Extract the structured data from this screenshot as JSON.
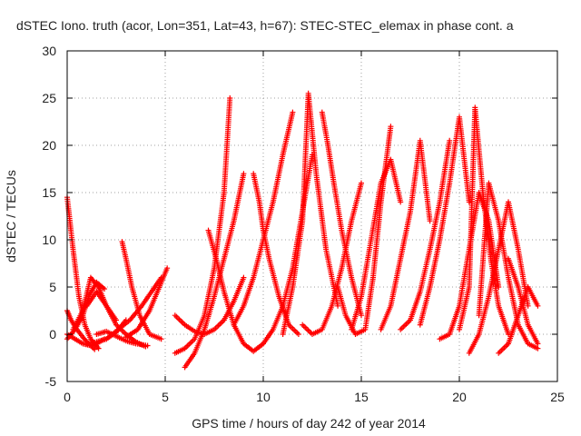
{
  "chart_data": {
    "type": "scatter",
    "title": "dSTEC Iono. truth (acor, Lon=351, Lat=43, h=67): STEC-STEC_elemax in phase cont. a",
    "xlabel": "GPS time / hours of day 242 of year 2014",
    "ylabel": "dSTEC  / TECUs",
    "xlim": [
      0,
      25
    ],
    "ylim": [
      -5,
      30
    ],
    "x_ticks": [
      0,
      5,
      10,
      15,
      20,
      25
    ],
    "x_tick_labels": [
      "0",
      "5",
      "10",
      "15",
      "20",
      "25"
    ],
    "y_ticks": [
      -5,
      0,
      5,
      10,
      15,
      20,
      25,
      30
    ],
    "y_tick_labels": [
      "-5",
      "0",
      "5",
      "10",
      "15",
      "20",
      "25",
      "30"
    ],
    "grid": true,
    "marker": "+",
    "color": "#ff0000",
    "series": [
      {
        "x": [
          0.0,
          0.3,
          0.6,
          0.9,
          1.2,
          1.6
        ],
        "y": [
          14.5,
          9.0,
          4.0,
          1.0,
          -0.5,
          -1.5
        ]
      },
      {
        "x": [
          0.0,
          0.2,
          0.5,
          0.8,
          1.0,
          1.4
        ],
        "y": [
          2.5,
          1.5,
          0.5,
          -0.3,
          -0.8,
          -1.6
        ]
      },
      {
        "x": [
          0.0,
          0.4,
          0.8,
          1.2,
          1.5,
          1.9
        ],
        "y": [
          0.0,
          -0.5,
          -1.0,
          -1.2,
          -1.0,
          -0.5
        ]
      },
      {
        "x": [
          0.0,
          0.4,
          0.8,
          1.1,
          1.5,
          1.9
        ],
        "y": [
          -0.5,
          0.5,
          2.0,
          4.0,
          5.5,
          4.8
        ]
      },
      {
        "x": [
          0.3,
          0.8,
          1.2,
          1.6,
          2.0,
          2.5
        ],
        "y": [
          0.5,
          2.5,
          6.0,
          5.0,
          3.0,
          1.5
        ]
      },
      {
        "x": [
          1.0,
          1.5,
          2.0,
          2.5,
          3.0,
          3.5,
          4.0
        ],
        "y": [
          3.0,
          4.5,
          3.0,
          1.0,
          0.0,
          -0.8,
          -1.3
        ]
      },
      {
        "x": [
          1.0,
          1.5,
          2.0,
          2.5,
          3.0
        ],
        "y": [
          -1.0,
          -0.8,
          -0.5,
          0.2,
          1.5
        ]
      },
      {
        "x": [
          1.5,
          2.0,
          2.5,
          3.0,
          3.5,
          4.1
        ],
        "y": [
          0.0,
          0.3,
          -0.2,
          -0.7,
          -1.0,
          -1.2
        ]
      },
      {
        "x": [
          2.8,
          3.0,
          3.3,
          3.7,
          4.2,
          4.8
        ],
        "y": [
          9.8,
          8.0,
          5.0,
          2.0,
          0.0,
          -0.5
        ]
      },
      {
        "x": [
          2.0,
          2.6,
          3.2,
          3.8,
          4.3,
          4.8
        ],
        "y": [
          -0.5,
          0.5,
          1.5,
          3.0,
          4.5,
          6.0
        ]
      },
      {
        "x": [
          3.0,
          3.6,
          4.2,
          4.8,
          5.1
        ],
        "y": [
          -0.3,
          0.5,
          2.5,
          5.5,
          7.0
        ]
      },
      {
        "x": [
          5.5,
          6.0,
          6.5,
          7.0,
          7.5,
          8.0,
          8.3
        ],
        "y": [
          -2.0,
          -1.5,
          -0.5,
          2.0,
          7.0,
          15.0,
          25.0
        ]
      },
      {
        "x": [
          6.0,
          6.5,
          7.0,
          7.5,
          8.0,
          8.5,
          9.0
        ],
        "y": [
          -3.5,
          -2.0,
          0.5,
          4.0,
          8.0,
          12.0,
          17.0
        ]
      },
      {
        "x": [
          5.5,
          6.0,
          6.5,
          7.0,
          7.5,
          8.0,
          8.5,
          9.0
        ],
        "y": [
          2.0,
          1.0,
          0.3,
          0.0,
          0.5,
          1.5,
          3.5,
          6.0
        ]
      },
      {
        "x": [
          7.2,
          7.6,
          8.0,
          8.5,
          9.0,
          9.5,
          10.0
        ],
        "y": [
          11.0,
          8.0,
          4.5,
          1.0,
          -1.0,
          -1.8,
          -1.0
        ]
      },
      {
        "x": [
          8.5,
          9.0,
          9.5,
          10.0,
          10.5,
          11.0,
          11.5
        ],
        "y": [
          1.0,
          3.0,
          6.0,
          10.0,
          14.0,
          19.0,
          23.5
        ]
      },
      {
        "x": [
          9.5,
          9.8,
          10.0,
          10.3,
          10.8,
          11.3,
          11.8
        ],
        "y": [
          17.0,
          14.0,
          11.0,
          8.0,
          4.0,
          1.0,
          0.0
        ]
      },
      {
        "x": [
          10.0,
          10.5,
          11.0,
          11.5,
          12.0,
          12.5
        ],
        "y": [
          -1.0,
          0.5,
          3.0,
          7.0,
          13.0,
          19.0
        ]
      },
      {
        "x": [
          11.0,
          11.5,
          12.0,
          12.3,
          12.7,
          13.2,
          13.8
        ],
        "y": [
          0.0,
          5.0,
          12.0,
          25.5,
          17.0,
          9.0,
          3.0
        ]
      },
      {
        "x": [
          12.0,
          12.5,
          13.0,
          13.5,
          14.0,
          14.5,
          15.0
        ],
        "y": [
          1.0,
          0.0,
          0.5,
          3.0,
          7.0,
          12.0,
          16.0
        ]
      },
      {
        "x": [
          13.0,
          13.3,
          13.6,
          14.0,
          14.5,
          15.0
        ],
        "y": [
          23.5,
          20.0,
          16.0,
          11.0,
          6.0,
          2.0
        ]
      },
      {
        "x": [
          13.8,
          14.2,
          14.7,
          15.2,
          15.6,
          16.0,
          16.5
        ],
        "y": [
          5.0,
          2.0,
          0.0,
          0.5,
          6.0,
          14.0,
          22.0
        ]
      },
      {
        "x": [
          14.5,
          15.0,
          15.5,
          16.0,
          16.5,
          17.0
        ],
        "y": [
          0.5,
          4.0,
          10.0,
          16.0,
          18.5,
          14.0
        ]
      },
      {
        "x": [
          16.0,
          16.5,
          17.0,
          17.5,
          18.0,
          18.5
        ],
        "y": [
          0.5,
          3.0,
          8.0,
          13.0,
          20.5,
          12.0
        ]
      },
      {
        "x": [
          17.0,
          17.5,
          18.0,
          18.5,
          19.0,
          19.5
        ],
        "y": [
          0.5,
          1.5,
          4.5,
          9.0,
          14.0,
          20.5
        ]
      },
      {
        "x": [
          18.0,
          18.5,
          19.0,
          19.5,
          20.0,
          20.5
        ],
        "y": [
          1.0,
          5.0,
          10.0,
          16.0,
          23.0,
          14.0
        ]
      },
      {
        "x": [
          19.0,
          19.5,
          20.0,
          20.5,
          21.0,
          21.5,
          22.0
        ],
        "y": [
          -0.5,
          0.0,
          3.0,
          9.0,
          15.0,
          12.0,
          5.0
        ]
      },
      {
        "x": [
          20.0,
          20.5,
          20.8,
          21.2,
          21.6,
          22.0,
          22.5
        ],
        "y": [
          0.5,
          5.0,
          24.0,
          15.0,
          8.0,
          3.0,
          0.0
        ]
      },
      {
        "x": [
          20.5,
          21.0,
          21.5,
          22.0,
          22.5,
          23.0,
          23.5
        ],
        "y": [
          -2.0,
          0.0,
          4.0,
          9.0,
          14.0,
          9.0,
          3.0
        ]
      },
      {
        "x": [
          21.0,
          21.5,
          22.0,
          22.5,
          23.0,
          23.5,
          24.0
        ],
        "y": [
          2.0,
          16.0,
          12.0,
          6.0,
          1.0,
          -1.0,
          -1.5
        ]
      },
      {
        "x": [
          22.0,
          22.5,
          23.0,
          23.5,
          24.0
        ],
        "y": [
          -2.0,
          -1.0,
          2.0,
          5.0,
          3.0
        ]
      },
      {
        "x": [
          22.5,
          23.0,
          23.5,
          24.0
        ],
        "y": [
          8.0,
          5.0,
          1.0,
          -1.0
        ]
      }
    ]
  }
}
